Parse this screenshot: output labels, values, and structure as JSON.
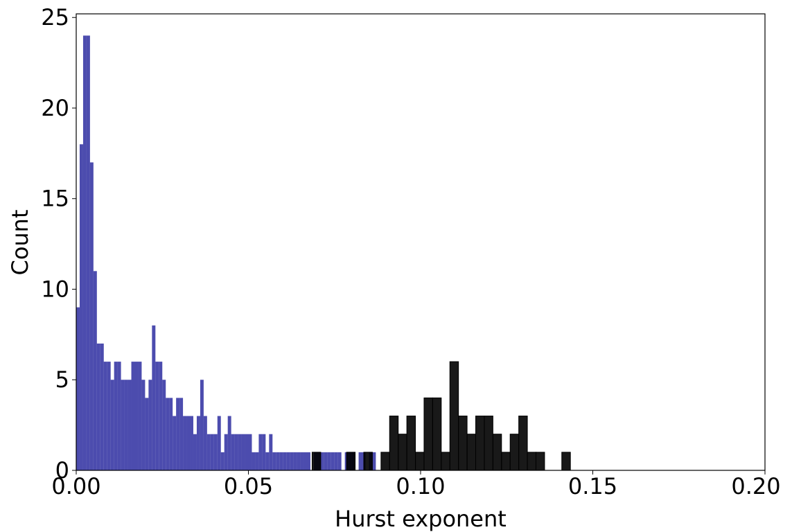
{
  "chart_data": {
    "type": "histogram",
    "xlabel": "Hurst exponent",
    "ylabel": "Count",
    "xlim": [
      0,
      0.2
    ],
    "ylim": [
      0,
      25.2
    ],
    "xticks": [
      {
        "value": 0,
        "label": "0.00"
      },
      {
        "value": 0.05,
        "label": "0.05"
      },
      {
        "value": 0.1,
        "label": "0.10"
      },
      {
        "value": 0.15,
        "label": "0.15"
      },
      {
        "value": 0.2,
        "label": "0.20"
      }
    ],
    "yticks": [
      0,
      5,
      10,
      15,
      20,
      25
    ],
    "grid": false,
    "series": [
      {
        "color": "#00008b",
        "opacity": 0.7,
        "bins": [
          0,
          0.001,
          0.002,
          0.003,
          0.004,
          0.005,
          0.006,
          0.007,
          0.008,
          0.009,
          0.01,
          0.011,
          0.012,
          0.013,
          0.014,
          0.015,
          0.016,
          0.017,
          0.018,
          0.019,
          0.02,
          0.021,
          0.022,
          0.023,
          0.024,
          0.025,
          0.026,
          0.027,
          0.028,
          0.029,
          0.03,
          0.031,
          0.032,
          0.033,
          0.034,
          0.035,
          0.036,
          0.037,
          0.038,
          0.039,
          0.04,
          0.041,
          0.042,
          0.043,
          0.044,
          0.045,
          0.046,
          0.047,
          0.048,
          0.049,
          0.05,
          0.051,
          0.052,
          0.053,
          0.054,
          0.055,
          0.056,
          0.057,
          0.058,
          0.059,
          0.06,
          0.061,
          0.062,
          0.063,
          0.064,
          0.065,
          0.066,
          0.067,
          0.068,
          0.069,
          0.07,
          0.071,
          0.072,
          0.073,
          0.074,
          0.075,
          0.076,
          0.077,
          0.078,
          0.079,
          0.08,
          0.081,
          0.082,
          0.083,
          0.084,
          0.085,
          0.086,
          0.087
        ],
        "values": [
          9,
          18,
          24,
          24,
          17,
          11,
          7,
          7,
          6,
          6,
          5,
          6,
          6,
          5,
          5,
          5,
          6,
          6,
          6,
          5,
          4,
          5,
          8,
          6,
          6,
          5,
          4,
          4,
          3,
          4,
          4,
          3,
          3,
          3,
          2,
          3,
          5,
          3,
          2,
          2,
          2,
          3,
          1,
          2,
          3,
          2,
          2,
          2,
          2,
          2,
          2,
          1,
          1,
          2,
          2,
          1,
          2,
          1,
          1,
          1,
          1,
          1,
          1,
          1,
          1,
          1,
          1,
          1,
          0,
          1,
          1,
          1,
          1,
          1,
          1,
          1,
          1,
          0,
          1,
          1,
          1,
          0,
          1,
          1,
          0,
          1,
          1
        ]
      },
      {
        "color": "#000000",
        "opacity": 0.9,
        "bins": [
          0.0685,
          0.071,
          0.0735,
          0.076,
          0.0785,
          0.081,
          0.0835,
          0.086,
          0.0885,
          0.091,
          0.0935,
          0.096,
          0.0985,
          0.101,
          0.1035,
          0.106,
          0.1085,
          0.111,
          0.1135,
          0.116,
          0.1185,
          0.121,
          0.1235,
          0.126,
          0.1285,
          0.131,
          0.1335,
          0.136,
          0.1385,
          0.141,
          0.1435
        ],
        "values": [
          1,
          0,
          0,
          0,
          1,
          0,
          1,
          0,
          1,
          3,
          2,
          3,
          1,
          4,
          4,
          1,
          6,
          3,
          2,
          3,
          3,
          2,
          1,
          2,
          3,
          1,
          1,
          0,
          0,
          1
        ]
      }
    ]
  }
}
